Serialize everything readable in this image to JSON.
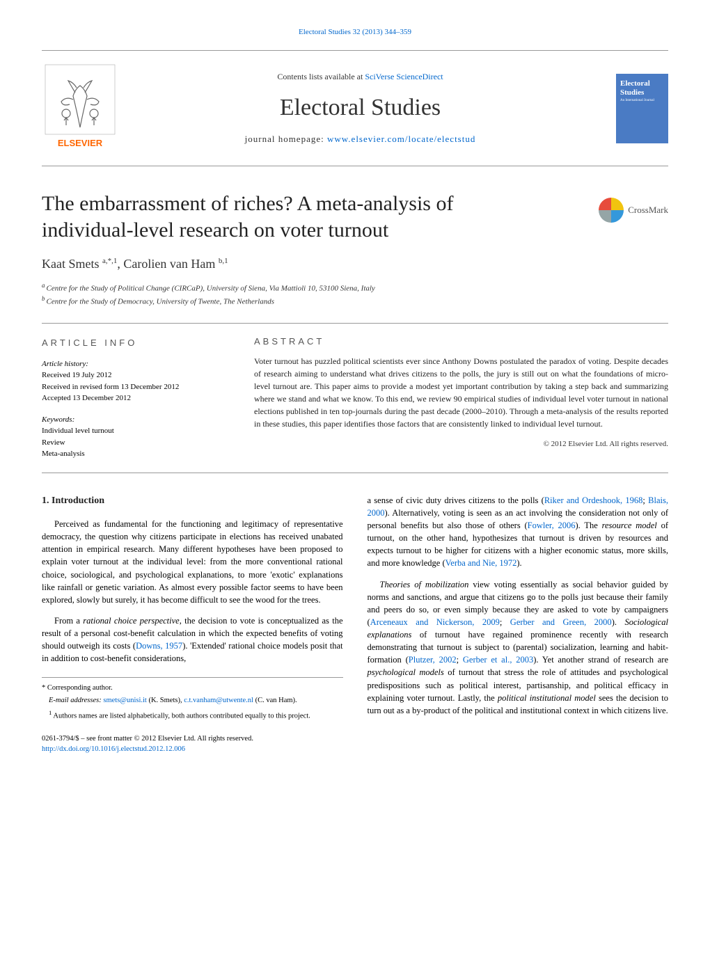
{
  "header": {
    "citation": "Electoral Studies 32 (2013) 344–359",
    "contents_prefix": "Contents lists available at ",
    "contents_link": "SciVerse ScienceDirect",
    "journal_title": "Electoral Studies",
    "homepage_prefix": "journal homepage: ",
    "homepage_link": "www.elsevier.com/locate/electstud",
    "publisher": "ELSEVIER",
    "cover_title": "Electoral Studies",
    "cover_sub": "An International Journal"
  },
  "crossmark": {
    "label": "CrossMark",
    "colors": [
      "#e74c3c",
      "#f1c40f",
      "#95a5a6",
      "#3498db"
    ]
  },
  "article": {
    "title": "The embarrassment of riches? A meta-analysis of individual-level research on voter turnout",
    "authors_html": "Kaat Smets <sup>a,*,1</sup>, Carolien van Ham <sup>b,1</sup>",
    "affiliations": [
      {
        "sup": "a",
        "text": "Centre for the Study of Political Change (CIRCaP), University of Siena, Via Mattioli 10, 53100 Siena, Italy"
      },
      {
        "sup": "b",
        "text": "Centre for the Study of Democracy, University of Twente, The Netherlands"
      }
    ]
  },
  "article_info": {
    "heading": "ARTICLE INFO",
    "history_label": "Article history:",
    "received": "Received 19 July 2012",
    "revised": "Received in revised form 13 December 2012",
    "accepted": "Accepted 13 December 2012",
    "keywords_label": "Keywords:",
    "keywords": [
      "Individual level turnout",
      "Review",
      "Meta-analysis"
    ]
  },
  "abstract": {
    "heading": "ABSTRACT",
    "text": "Voter turnout has puzzled political scientists ever since Anthony Downs postulated the paradox of voting. Despite decades of research aiming to understand what drives citizens to the polls, the jury is still out on what the foundations of micro-level turnout are. This paper aims to provide a modest yet important contribution by taking a step back and summarizing where we stand and what we know. To this end, we review 90 empirical studies of individual level voter turnout in national elections published in ten top-journals during the past decade (2000–2010). Through a meta-analysis of the results reported in these studies, this paper identifies those factors that are consistently linked to individual level turnout.",
    "copyright": "© 2012 Elsevier Ltd. All rights reserved."
  },
  "body": {
    "section_heading": "1. Introduction",
    "left": {
      "p1": "Perceived as fundamental for the functioning and legitimacy of representative democracy, the question why citizens participate in elections has received unabated attention in empirical research. Many different hypotheses have been proposed to explain voter turnout at the individual level: from the more conventional rational choice, sociological, and psychological explanations, to more 'exotic' explanations like rainfall or genetic variation. As almost every possible factor seems to have been explored, slowly but surely, it has become difficult to see the wood for the trees.",
      "p2_pre": "From a ",
      "p2_em1": "rational choice perspective",
      "p2_mid1": ", the decision to vote is conceptualized as the result of a personal cost-benefit calculation in which the expected benefits of voting should outweigh its costs (",
      "p2_ref1": "Downs, 1957",
      "p2_mid2": "). 'Extended' rational choice models posit that in addition to cost-benefit considerations,"
    },
    "right": {
      "p1_pre": "a sense of civic duty drives citizens to the polls (",
      "p1_ref1": "Riker and Ordeshook, 1968",
      "p1_sep1": "; ",
      "p1_ref2": "Blais, 2000",
      "p1_mid1": "). Alternatively, voting is seen as an act involving the consideration not only of personal benefits but also those of others (",
      "p1_ref3": "Fowler, 2006",
      "p1_mid2": "). The ",
      "p1_em1": "resource model",
      "p1_mid3": " of turnout, on the other hand, hypothesizes that turnout is driven by resources and expects turnout to be higher for citizens with a higher economic status, more skills, and more knowledge (",
      "p1_ref4": "Verba and Nie, 1972",
      "p1_end": ").",
      "p2_em1": "Theories of mobilization",
      "p2_mid1": " view voting essentially as social behavior guided by norms and sanctions, and argue that citizens go to the polls just because their family and peers do so, or even simply because they are asked to vote by campaigners (",
      "p2_ref1": "Arceneaux and Nickerson, 2009",
      "p2_sep1": "; ",
      "p2_ref2": "Gerber and Green, 2000",
      "p2_mid2": "). ",
      "p2_em2": "Sociological explanations",
      "p2_mid3": " of turnout have regained prominence recently with research demonstrating that turnout is subject to (parental) socialization, learning and habit-formation (",
      "p2_ref3": "Plutzer, 2002",
      "p2_sep2": "; ",
      "p2_ref4": "Gerber et al., 2003",
      "p2_mid4": "). Yet another strand of research are ",
      "p2_em3": "psychological models",
      "p2_mid5": " of turnout that stress the role of attitudes and psychological predispositions such as political interest, partisanship, and political efficacy in explaining voter turnout. Lastly, the ",
      "p2_em4": "political institutional model",
      "p2_end": " sees the decision to turn out as a by-product of the political and institutional context in which citizens live."
    }
  },
  "footnotes": {
    "corresponding": "* Corresponding author.",
    "email_label": "E-mail addresses: ",
    "email1": "smets@unisi.it",
    "email1_name": " (K. Smets), ",
    "email2": "c.t.vanham@utwente.nl",
    "email2_name": " (C. van Ham).",
    "note1_sup": "1",
    "note1": " Authors names are listed alphabetically, both authors contributed equally to this project."
  },
  "bottom": {
    "issn_line": "0261-3794/$ – see front matter © 2012 Elsevier Ltd. All rights reserved.",
    "doi": "http://dx.doi.org/10.1016/j.electstud.2012.12.006"
  },
  "colors": {
    "link": "#0066cc",
    "text": "#222222",
    "border": "#999999",
    "cover_bg": "#4a7bc4",
    "elsevier_orange": "#ff6600"
  }
}
